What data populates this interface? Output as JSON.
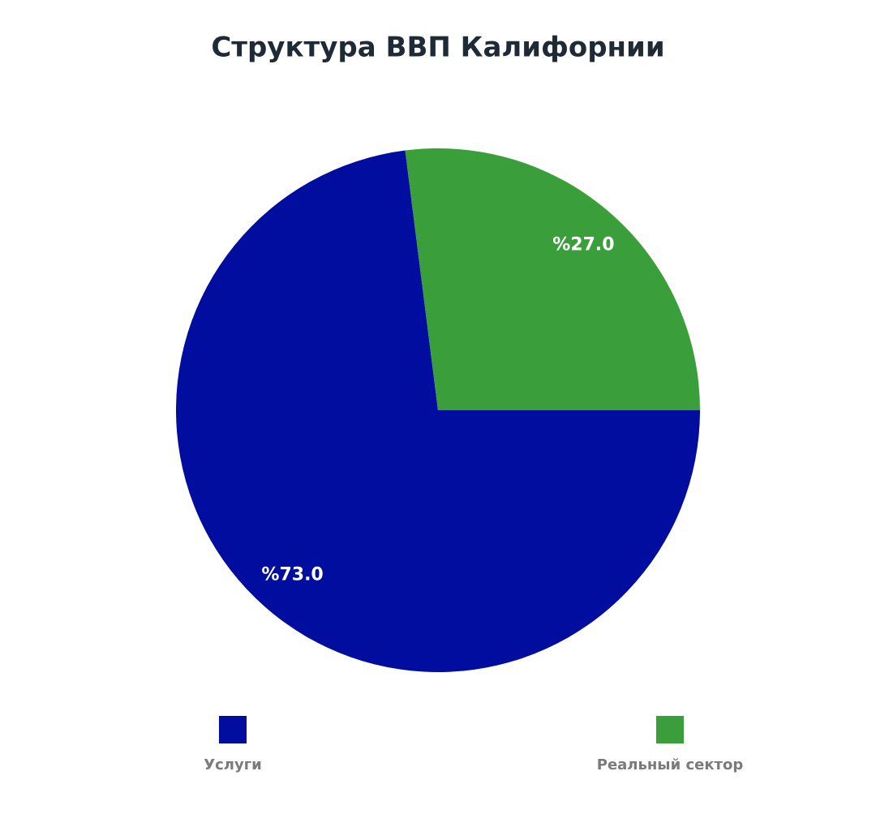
{
  "chart_data": {
    "type": "pie",
    "title": "Структура ВВП Калифорнии",
    "categories": [
      "Услуги",
      "Реальный сектор"
    ],
    "values": [
      73,
      27
    ],
    "value_labels": [
      "%73.0",
      "%27.0"
    ],
    "colors": [
      "#000d9e",
      "#3a9e3a"
    ]
  }
}
